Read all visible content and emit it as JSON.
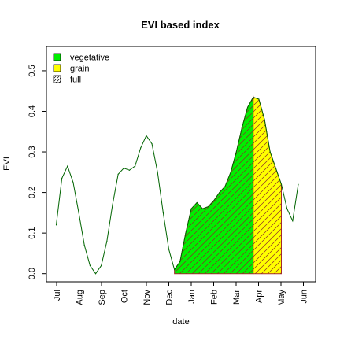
{
  "chart_data": {
    "type": "line",
    "title": "EVI based index",
    "xlabel": "date",
    "ylabel": "EVI",
    "x_ticks": [
      "Jul",
      "Aug",
      "Sep",
      "Oct",
      "Nov",
      "Dec",
      "Jan",
      "Feb",
      "Mar",
      "Apr",
      "May",
      "Jun"
    ],
    "ylim": [
      -0.02,
      0.56
    ],
    "y_ticks": [
      0.0,
      0.1,
      0.2,
      0.3,
      0.4,
      0.5
    ],
    "y_tick_labels": [
      "0.0",
      "0.1",
      "0.2",
      "0.3",
      "0.4",
      "0.5"
    ],
    "grid": false,
    "legend_position": "top-left",
    "series": [
      {
        "name": "EVI",
        "color": "#006400",
        "x": [
          "Jul",
          "Jul 8",
          "Jul 16",
          "Jul 24",
          "Aug 1",
          "Aug 9",
          "Aug 17",
          "Aug 25",
          "Sep 2",
          "Sep 10",
          "Sep 18",
          "Sep 26",
          "Oct 4",
          "Oct 12",
          "Oct 20",
          "Oct 28",
          "Nov 5",
          "Nov 13",
          "Nov 21",
          "Nov 29",
          "Dec 7",
          "Dec 15",
          "Dec 23",
          "Dec 31",
          "Jan 8",
          "Jan 16",
          "Jan 24",
          "Feb 1",
          "Feb 9",
          "Feb 17",
          "Feb 25",
          "Mar 5",
          "Mar 13",
          "Mar 21",
          "Mar 29",
          "Apr 6",
          "Apr 14",
          "Apr 22",
          "Apr 30",
          "May 8",
          "May 16",
          "May 24",
          "Jun 1",
          "Jun 9"
        ],
        "values": [
          0.12,
          0.235,
          0.265,
          0.225,
          0.15,
          0.07,
          0.02,
          0.0,
          0.02,
          0.08,
          0.17,
          0.245,
          0.26,
          0.255,
          0.265,
          0.31,
          0.34,
          0.32,
          0.25,
          0.15,
          0.06,
          0.01,
          0.03,
          0.1,
          0.16,
          0.175,
          0.16,
          0.165,
          0.18,
          0.2,
          0.215,
          0.25,
          0.3,
          0.36,
          0.41,
          0.435,
          0.43,
          0.38,
          0.3,
          0.26,
          0.22,
          0.16,
          0.13,
          0.22
        ]
      }
    ],
    "filled_regions": [
      {
        "name": "vegetative",
        "fill": "#00ee00",
        "hatch": true,
        "start_index": 21,
        "end_index": 35
      },
      {
        "name": "grain",
        "fill": "#ffff00",
        "hatch": true,
        "start_index": 35,
        "end_index": 40
      }
    ],
    "legend": [
      {
        "label": "vegetative",
        "fill": "#00ee00",
        "hatch": false
      },
      {
        "label": "grain",
        "fill": "#ffff00",
        "hatch": false
      },
      {
        "label": "full",
        "fill": "#ffffff",
        "hatch": true
      }
    ]
  }
}
